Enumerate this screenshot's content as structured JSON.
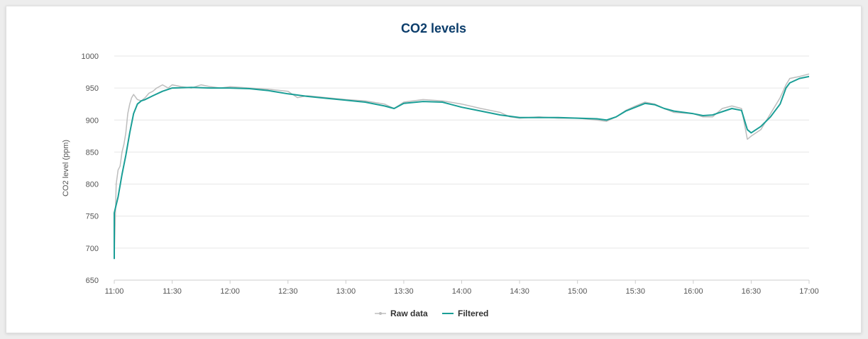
{
  "chart_data": {
    "type": "line",
    "title": "CO2 levels",
    "xlabel": "",
    "ylabel": "CO2 level (ppm)",
    "ylim": [
      650,
      1000
    ],
    "yticks": [
      650,
      700,
      750,
      800,
      850,
      900,
      950,
      1000
    ],
    "xlim": [
      "11:00",
      "17:00"
    ],
    "xticks": [
      "11:00",
      "11:30",
      "12:00",
      "12:30",
      "13:00",
      "13:30",
      "14:00",
      "14:30",
      "15:00",
      "15:30",
      "16:00",
      "16:30",
      "17:00"
    ],
    "grid": "horizontal",
    "legend_position": "bottom-center",
    "series": [
      {
        "name": "Raw data",
        "color": "#bdbdbd",
        "points": [
          [
            "11:00",
            685
          ],
          [
            "11:01",
            800
          ],
          [
            "11:02",
            822
          ],
          [
            "11:03",
            828
          ],
          [
            "11:04",
            850
          ],
          [
            "11:05",
            862
          ],
          [
            "11:06",
            880
          ],
          [
            "11:07",
            910
          ],
          [
            "11:08",
            925
          ],
          [
            "11:09",
            935
          ],
          [
            "11:10",
            940
          ],
          [
            "11:12",
            932
          ],
          [
            "11:14",
            930
          ],
          [
            "11:16",
            935
          ],
          [
            "11:18",
            942
          ],
          [
            "11:20",
            945
          ],
          [
            "11:22",
            950
          ],
          [
            "11:25",
            955
          ],
          [
            "11:28",
            950
          ],
          [
            "11:30",
            955
          ],
          [
            "11:35",
            952
          ],
          [
            "11:40",
            950
          ],
          [
            "11:45",
            955
          ],
          [
            "11:50",
            952
          ],
          [
            "11:55",
            950
          ],
          [
            "12:00",
            952
          ],
          [
            "12:10",
            950
          ],
          [
            "12:20",
            948
          ],
          [
            "12:30",
            945
          ],
          [
            "12:35",
            935
          ],
          [
            "12:40",
            938
          ],
          [
            "12:50",
            935
          ],
          [
            "13:00",
            932
          ],
          [
            "13:10",
            930
          ],
          [
            "13:20",
            925
          ],
          [
            "13:25",
            918
          ],
          [
            "13:30",
            928
          ],
          [
            "13:40",
            932
          ],
          [
            "13:50",
            930
          ],
          [
            "14:00",
            925
          ],
          [
            "14:10",
            918
          ],
          [
            "14:20",
            912
          ],
          [
            "14:25",
            905
          ],
          [
            "14:30",
            903
          ],
          [
            "14:40",
            905
          ],
          [
            "14:50",
            903
          ],
          [
            "15:00",
            903
          ],
          [
            "15:10",
            900
          ],
          [
            "15:15",
            898
          ],
          [
            "15:20",
            905
          ],
          [
            "15:25",
            915
          ],
          [
            "15:30",
            922
          ],
          [
            "15:35",
            928
          ],
          [
            "15:40",
            925
          ],
          [
            "15:45",
            918
          ],
          [
            "15:50",
            912
          ],
          [
            "16:00",
            910
          ],
          [
            "16:05",
            905
          ],
          [
            "16:10",
            905
          ],
          [
            "16:15",
            918
          ],
          [
            "16:20",
            922
          ],
          [
            "16:25",
            918
          ],
          [
            "16:28",
            870
          ],
          [
            "16:30",
            875
          ],
          [
            "16:35",
            885
          ],
          [
            "16:40",
            910
          ],
          [
            "16:45",
            935
          ],
          [
            "16:48",
            955
          ],
          [
            "16:50",
            965
          ],
          [
            "16:55",
            968
          ],
          [
            "17:00",
            972
          ]
        ]
      },
      {
        "name": "Filtered",
        "color": "#1a9e96",
        "points": [
          [
            "11:00",
            683
          ],
          [
            "11:00",
            755
          ],
          [
            "11:02",
            780
          ],
          [
            "11:04",
            815
          ],
          [
            "11:06",
            845
          ],
          [
            "11:08",
            880
          ],
          [
            "11:10",
            910
          ],
          [
            "11:12",
            925
          ],
          [
            "11:14",
            930
          ],
          [
            "11:16",
            932
          ],
          [
            "11:20",
            938
          ],
          [
            "11:25",
            945
          ],
          [
            "11:30",
            950
          ],
          [
            "11:40",
            951
          ],
          [
            "11:50",
            950
          ],
          [
            "12:00",
            950
          ],
          [
            "12:10",
            949
          ],
          [
            "12:20",
            946
          ],
          [
            "12:30",
            941
          ],
          [
            "12:40",
            937
          ],
          [
            "12:50",
            934
          ],
          [
            "13:00",
            931
          ],
          [
            "13:10",
            928
          ],
          [
            "13:20",
            922
          ],
          [
            "13:25",
            918
          ],
          [
            "13:30",
            926
          ],
          [
            "13:40",
            929
          ],
          [
            "13:50",
            928
          ],
          [
            "14:00",
            920
          ],
          [
            "14:10",
            914
          ],
          [
            "14:20",
            908
          ],
          [
            "14:30",
            904
          ],
          [
            "14:40",
            904
          ],
          [
            "14:50",
            904
          ],
          [
            "15:00",
            903
          ],
          [
            "15:10",
            902
          ],
          [
            "15:15",
            900
          ],
          [
            "15:20",
            905
          ],
          [
            "15:25",
            914
          ],
          [
            "15:30",
            920
          ],
          [
            "15:35",
            926
          ],
          [
            "15:40",
            924
          ],
          [
            "15:45",
            918
          ],
          [
            "15:50",
            914
          ],
          [
            "16:00",
            910
          ],
          [
            "16:05",
            907
          ],
          [
            "16:10",
            908
          ],
          [
            "16:15",
            913
          ],
          [
            "16:20",
            918
          ],
          [
            "16:25",
            915
          ],
          [
            "16:28",
            885
          ],
          [
            "16:30",
            880
          ],
          [
            "16:35",
            890
          ],
          [
            "16:40",
            905
          ],
          [
            "16:45",
            925
          ],
          [
            "16:48",
            950
          ],
          [
            "16:50",
            958
          ],
          [
            "16:55",
            965
          ],
          [
            "17:00",
            968
          ]
        ]
      }
    ]
  }
}
